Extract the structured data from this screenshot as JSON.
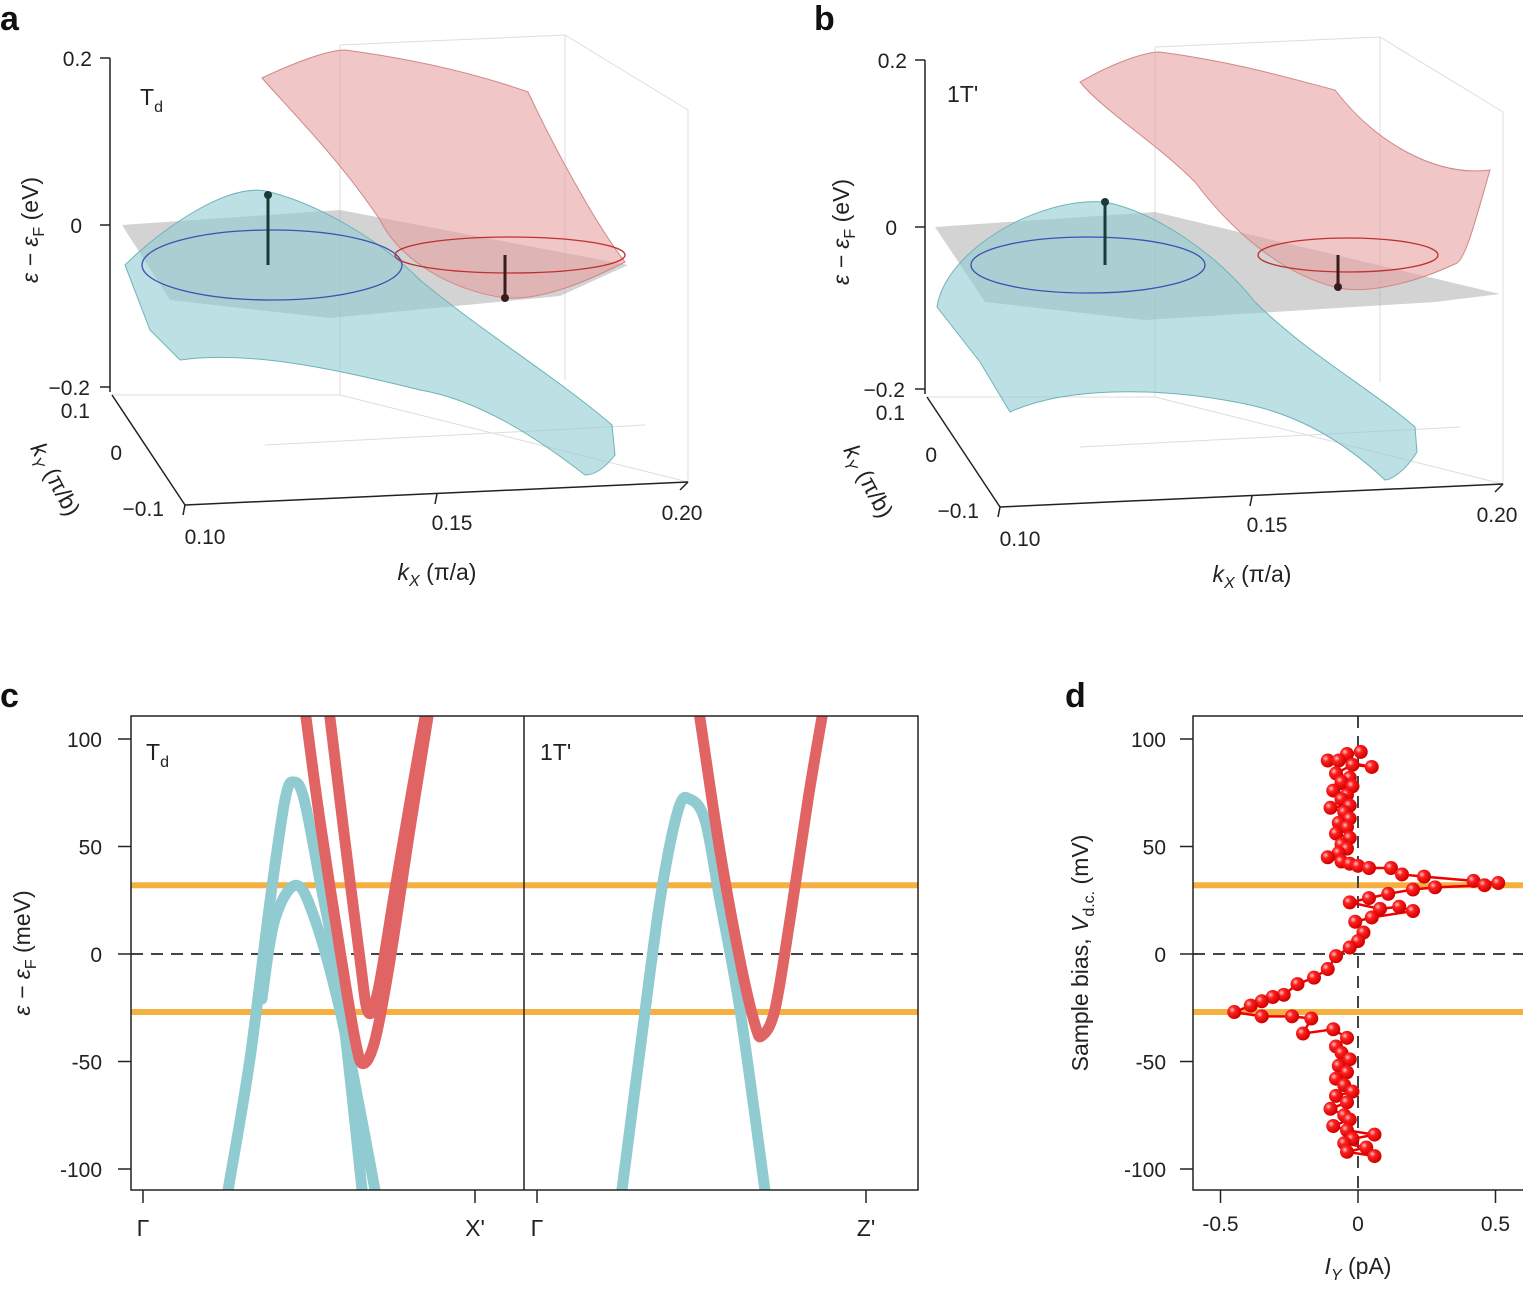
{
  "panels": {
    "a": "a",
    "b": "b",
    "c": "c",
    "d": "d"
  },
  "colors": {
    "valence": "#8fcbd0",
    "conduction": "#e06464",
    "orange": "#f5b041",
    "points": "#ee0000",
    "plane": "#a8a8a8"
  },
  "chart_data": [
    {
      "type": "surface",
      "panel": "a",
      "inset_label": {
        "main": "T",
        "sub": "d"
      },
      "zlabel": {
        "main": "ε − ε",
        "sub": "F",
        "unit": " (eV)"
      },
      "zticks": [
        "0.2",
        "0",
        "−0.2"
      ],
      "ylabel": {
        "main": "k",
        "sub": "Y",
        "unit": " (π/b)"
      },
      "yticks": [
        "0.1",
        "0",
        "−0.1"
      ],
      "xlabel": {
        "main": "k",
        "sub": "X",
        "unit": " (π/a)"
      },
      "xticks": [
        "0.10",
        "0.15",
        "0.20"
      ]
    },
    {
      "type": "surface",
      "panel": "b",
      "inset_label": {
        "main": "1T'",
        "sub": ""
      },
      "zlabel": {
        "main": "ε − ε",
        "sub": "F",
        "unit": " (eV)"
      },
      "zticks": [
        "0.2",
        "0",
        "−0.2"
      ],
      "ylabel": {
        "main": "k",
        "sub": "Y",
        "unit": " (π/b)"
      },
      "yticks": [
        "0.1",
        "0",
        "−0.1"
      ],
      "xlabel": {
        "main": "k",
        "sub": "X",
        "unit": " (π/a)"
      },
      "xticks": [
        "0.10",
        "0.15",
        "0.20"
      ]
    },
    {
      "type": "line",
      "panel": "c",
      "ylabel": {
        "main": "ε − ε",
        "sub": "F",
        "unit": " (meV)"
      },
      "ylim": [
        -110,
        110
      ],
      "yticks": [
        100,
        50,
        0,
        -50,
        -100
      ],
      "ytick_labels": [
        "100",
        "50",
        "0",
        "-50",
        "-100"
      ],
      "hlines": [
        32,
        -27
      ],
      "dashed_zero": true,
      "subpanels": [
        {
          "label": {
            "main": "T",
            "sub": "d"
          },
          "xticks": [
            "Γ",
            "X'"
          ],
          "series": [
            {
              "band": "valence",
              "points": [
                [
                  0.256,
                  -110
                ],
                [
                  0.322,
                  -49
                ],
                [
                  0.383,
                  25
                ],
                [
                  0.428,
                  72
                ],
                [
                  0.455,
                  80
                ],
                [
                  0.485,
                  72
                ],
                [
                  0.533,
                  34
                ],
                [
                  0.593,
                  -17
                ],
                [
                  0.66,
                  -110
                ]
              ]
            },
            {
              "band": "valence",
              "points": [
                [
                  0.358,
                  -21
                ],
                [
                  0.397,
                  16
                ],
                [
                  0.461,
                  32
                ],
                [
                  0.518,
                  16
                ],
                [
                  0.593,
                  -26
                ],
                [
                  0.654,
                  -73
                ],
                [
                  0.699,
                  -110
                ]
              ]
            },
            {
              "band": "conduction",
              "points": [
                [
                  0.491,
                  110
                ],
                [
                  0.533,
                  62
                ],
                [
                  0.593,
                  2
                ],
                [
                  0.639,
                  -40
                ],
                [
                  0.663,
                  -51
                ],
                [
                  0.699,
                  -40
                ],
                [
                  0.744,
                  -3
                ],
                [
                  0.804,
                  58
                ],
                [
                  0.858,
                  110
                ]
              ]
            },
            {
              "band": "conduction",
              "points": [
                [
                  0.563,
                  110
                ],
                [
                  0.608,
                  53
                ],
                [
                  0.654,
                  -3
                ],
                [
                  0.678,
                  -27
                ],
                [
                  0.708,
                  -17
                ],
                [
                  0.759,
                  30
                ],
                [
                  0.81,
                  76
                ],
                [
                  0.849,
                  110
                ]
              ]
            }
          ]
        },
        {
          "label": {
            "main": "1T'",
            "sub": ""
          },
          "xticks": [
            "Γ",
            "Z'"
          ],
          "series": [
            {
              "band": "valence",
              "points": [
                [
                  0.258,
                  -110
                ],
                [
                  0.313,
                  -45
                ],
                [
                  0.374,
                  25
                ],
                [
                  0.429,
                  67
                ],
                [
                  0.465,
                  72
                ],
                [
                  0.511,
                  62
                ],
                [
                  0.556,
                  25
                ],
                [
                  0.617,
                  -26
                ],
                [
                  0.693,
                  -110
                ]
              ]
            },
            {
              "band": "conduction",
              "points": [
                [
                  0.495,
                  110
                ],
                [
                  0.556,
                  48
                ],
                [
                  0.617,
                  -3
                ],
                [
                  0.663,
                  -33
                ],
                [
                  0.684,
                  -38
                ],
                [
                  0.723,
                  -26
                ],
                [
                  0.769,
                  16
                ],
                [
                  0.824,
                  72
                ],
                [
                  0.866,
                  110
                ]
              ]
            }
          ]
        }
      ]
    },
    {
      "type": "scatter",
      "panel": "d",
      "xlabel": {
        "main": "I",
        "sub": "Y",
        "unit": " (pA)"
      },
      "ylabel": {
        "main": "Sample bias, ",
        "it": "V",
        "sub": "d.c.",
        "unit": " (mV)"
      },
      "xlim": [
        -0.6,
        0.6
      ],
      "ylim": [
        -110,
        110
      ],
      "xticks": [
        -0.5,
        0,
        0.5
      ],
      "xtick_labels": [
        "-0.5",
        "0",
        "0.5"
      ],
      "yticks": [
        100,
        50,
        0,
        -50,
        -100
      ],
      "ytick_labels": [
        "100",
        "50",
        "0",
        "-50",
        "-100"
      ],
      "hlines": [
        32,
        -27
      ],
      "dashed_zero": true,
      "points": [
        [
          0.01,
          94
        ],
        [
          -0.04,
          93
        ],
        [
          -0.11,
          90
        ],
        [
          -0.07,
          90
        ],
        [
          0.05,
          87
        ],
        [
          -0.02,
          88
        ],
        [
          -0.08,
          84
        ],
        [
          -0.03,
          82
        ],
        [
          -0.06,
          80
        ],
        [
          -0.02,
          78
        ],
        [
          -0.09,
          76
        ],
        [
          -0.04,
          74
        ],
        [
          -0.06,
          72
        ],
        [
          -0.03,
          69
        ],
        [
          -0.1,
          68
        ],
        [
          -0.05,
          66
        ],
        [
          -0.03,
          63
        ],
        [
          -0.07,
          61
        ],
        [
          -0.04,
          59
        ],
        [
          -0.08,
          56
        ],
        [
          -0.03,
          54
        ],
        [
          -0.06,
          51
        ],
        [
          -0.04,
          49
        ],
        [
          -0.07,
          47
        ],
        [
          -0.11,
          45
        ],
        [
          -0.06,
          43
        ],
        [
          -0.03,
          42
        ],
        [
          0.0,
          41
        ],
        [
          0.04,
          40
        ],
        [
          0.12,
          40
        ],
        [
          0.16,
          37
        ],
        [
          0.24,
          36
        ],
        [
          0.42,
          34
        ],
        [
          0.51,
          33
        ],
        [
          0.46,
          32
        ],
        [
          0.28,
          31
        ],
        [
          0.2,
          30
        ],
        [
          0.11,
          28
        ],
        [
          0.04,
          26
        ],
        [
          -0.03,
          24
        ],
        [
          0.08,
          21
        ],
        [
          0.15,
          22
        ],
        [
          0.2,
          20
        ],
        [
          0.05,
          17
        ],
        [
          -0.01,
          15
        ],
        [
          0.02,
          10
        ],
        [
          0.0,
          6
        ],
        [
          -0.03,
          3
        ],
        [
          -0.08,
          -1
        ],
        [
          -0.11,
          -7
        ],
        [
          -0.16,
          -11
        ],
        [
          -0.22,
          -14
        ],
        [
          -0.27,
          -19
        ],
        [
          -0.31,
          -20
        ],
        [
          -0.35,
          -22
        ],
        [
          -0.39,
          -24
        ],
        [
          -0.45,
          -27
        ],
        [
          -0.35,
          -29
        ],
        [
          -0.24,
          -29
        ],
        [
          -0.17,
          -30
        ],
        [
          -0.2,
          -37
        ],
        [
          -0.09,
          -35
        ],
        [
          -0.04,
          -39
        ],
        [
          -0.08,
          -43
        ],
        [
          -0.06,
          -46
        ],
        [
          -0.03,
          -49
        ],
        [
          -0.07,
          -52
        ],
        [
          -0.04,
          -55
        ],
        [
          -0.08,
          -58
        ],
        [
          -0.05,
          -61
        ],
        [
          -0.02,
          -64
        ],
        [
          -0.08,
          -66
        ],
        [
          -0.04,
          -69
        ],
        [
          -0.1,
          -72
        ],
        [
          -0.05,
          -75
        ],
        [
          -0.03,
          -77
        ],
        [
          -0.09,
          -80
        ],
        [
          -0.04,
          -82
        ],
        [
          0.06,
          -84
        ],
        [
          -0.02,
          -86
        ],
        [
          -0.05,
          -88
        ],
        [
          0.03,
          -90
        ],
        [
          -0.04,
          -92
        ],
        [
          0.06,
          -94
        ]
      ]
    }
  ]
}
